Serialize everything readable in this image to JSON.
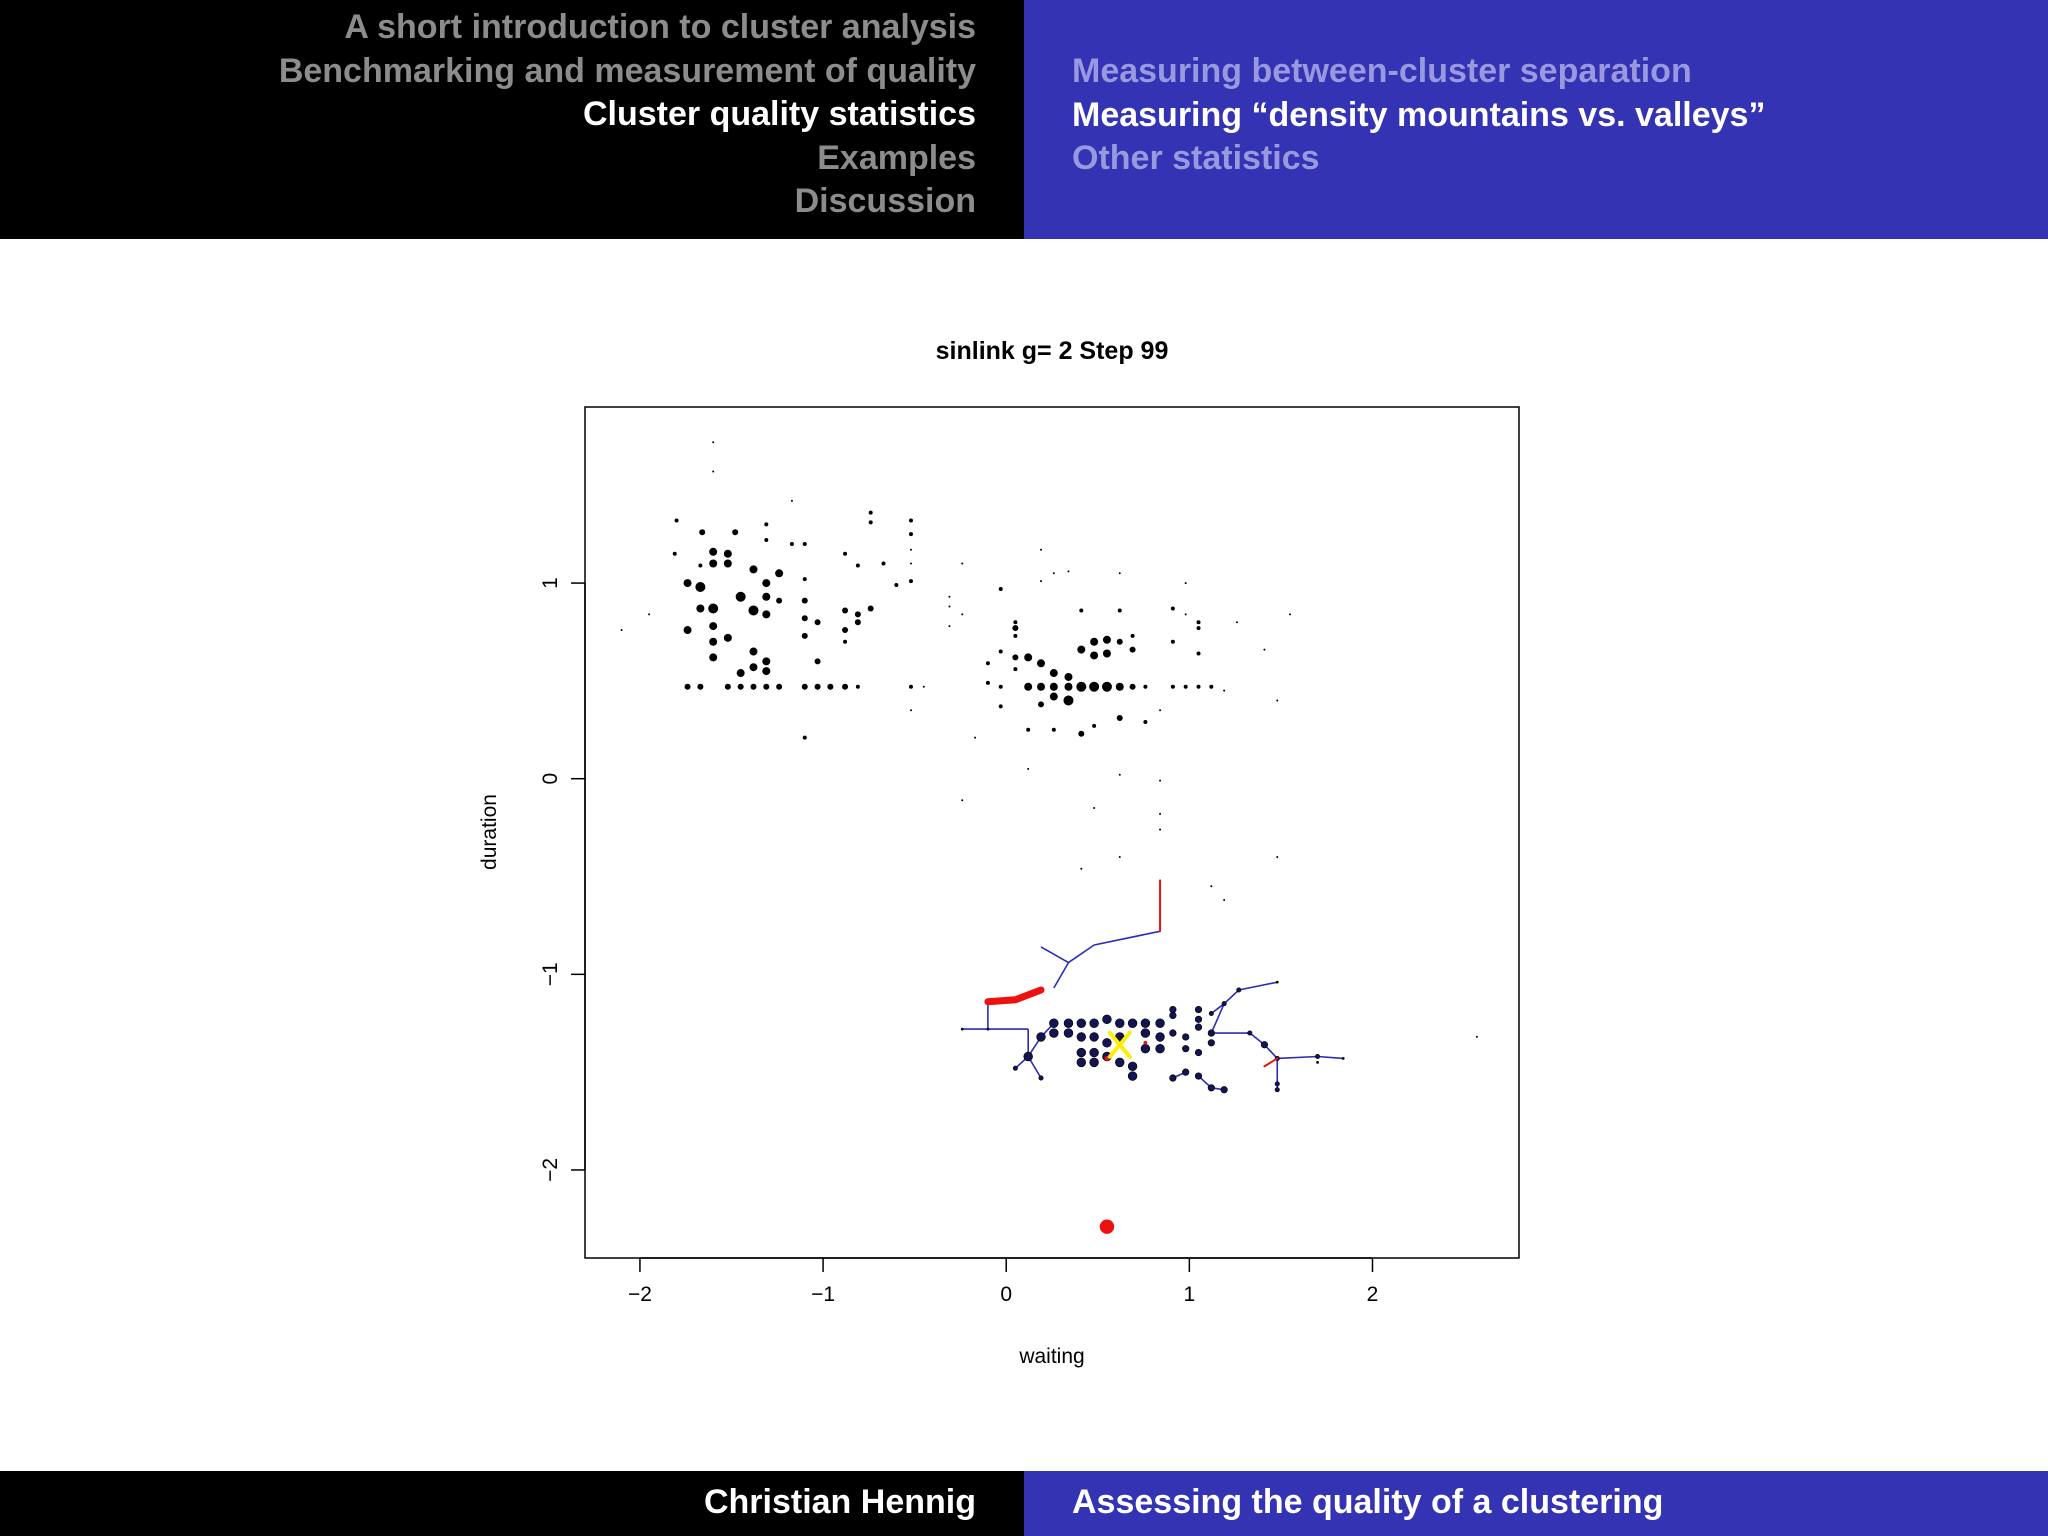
{
  "header": {
    "sections": [
      {
        "label": "A short introduction to cluster analysis",
        "active": false
      },
      {
        "label": "Benchmarking and measurement of quality",
        "active": false
      },
      {
        "label": "Cluster quality statistics",
        "active": true
      },
      {
        "label": "Examples",
        "active": false
      },
      {
        "label": "Discussion",
        "active": false
      }
    ],
    "subsections": [
      {
        "label": "Measuring between-cluster separation",
        "active": false
      },
      {
        "label": "Measuring “density mountains vs. valleys”",
        "active": true
      },
      {
        "label": "Other statistics",
        "active": false
      }
    ]
  },
  "footer": {
    "author": "Christian Hennig",
    "talk_title": "Assessing the quality of a clustering"
  },
  "colors": {
    "header_dark": "#000000",
    "header_accent": "#3333b3",
    "inactive_section": "#8c8c8c",
    "inactive_subsection": "#9999e0",
    "path": "#2b2bb8",
    "highlight": "#ee1111",
    "current": "#ffee00"
  },
  "chart_data": {
    "type": "scatter",
    "title": "sinlink  g= 2  Step  99",
    "xlabel": "waiting",
    "ylabel": "duration",
    "xlim": [
      -2.3,
      2.8
    ],
    "ylim": [
      -2.45,
      1.9
    ],
    "xticks": [
      -2,
      -1,
      0,
      1,
      2
    ],
    "yticks": [
      -2,
      -1,
      0,
      1
    ],
    "xtick_labels": [
      "−2",
      "−1",
      "0",
      "1",
      "2"
    ],
    "ytick_labels": [
      "−2",
      "−1",
      "0",
      "1"
    ],
    "grid": false,
    "points": [
      [
        -1.6,
        1.72,
        0.5
      ],
      [
        -1.6,
        1.57,
        0.5
      ],
      [
        -1.8,
        1.32,
        1
      ],
      [
        -1.66,
        1.26,
        1.5
      ],
      [
        -1.48,
        1.26,
        1.5
      ],
      [
        -1.31,
        1.3,
        1
      ],
      [
        -1.31,
        1.22,
        1
      ],
      [
        -1.17,
        1.42,
        0.5
      ],
      [
        -1.17,
        1.2,
        1
      ],
      [
        -1.1,
        1.2,
        1
      ],
      [
        -0.74,
        1.36,
        1
      ],
      [
        -0.74,
        1.31,
        1
      ],
      [
        -0.52,
        1.32,
        1
      ],
      [
        -0.52,
        1.25,
        1
      ],
      [
        -0.52,
        1.17,
        0.5
      ],
      [
        -0.88,
        1.15,
        1
      ],
      [
        -0.81,
        1.09,
        1
      ],
      [
        -0.67,
        1.1,
        1
      ],
      [
        -0.6,
        0.99,
        1
      ],
      [
        -0.52,
        1.01,
        1
      ],
      [
        -0.52,
        1.1,
        0.5
      ],
      [
        -1.81,
        1.15,
        1
      ],
      [
        -1.6,
        1.16,
        2
      ],
      [
        -1.52,
        1.15,
        2
      ],
      [
        -1.6,
        1.1,
        2
      ],
      [
        -1.52,
        1.1,
        2
      ],
      [
        -1.67,
        1.09,
        1
      ],
      [
        -1.38,
        1.07,
        2
      ],
      [
        -1.24,
        1.05,
        2
      ],
      [
        -1.31,
        1.0,
        2
      ],
      [
        -1.1,
        1.02,
        1
      ],
      [
        -1.74,
        1.0,
        2
      ],
      [
        -1.67,
        0.98,
        2.5
      ],
      [
        -1.45,
        0.93,
        2.5
      ],
      [
        -1.38,
        0.86,
        2.5
      ],
      [
        -1.31,
        0.93,
        2
      ],
      [
        -1.24,
        0.91,
        1.5
      ],
      [
        -1.1,
        0.91,
        1.5
      ],
      [
        -1.67,
        0.87,
        2
      ],
      [
        -1.6,
        0.87,
        2.5
      ],
      [
        -1.31,
        0.84,
        2
      ],
      [
        -1.1,
        0.82,
        1.5
      ],
      [
        -1.03,
        0.8,
        1.5
      ],
      [
        -0.88,
        0.86,
        1.5
      ],
      [
        -0.81,
        0.84,
        1.5
      ],
      [
        -0.74,
        0.87,
        1.5
      ],
      [
        -0.81,
        0.8,
        1.5
      ],
      [
        -0.88,
        0.76,
        1.5
      ],
      [
        -1.1,
        0.73,
        1.5
      ],
      [
        -0.88,
        0.7,
        1
      ],
      [
        -1.74,
        0.76,
        2
      ],
      [
        -1.6,
        0.78,
        2
      ],
      [
        -1.52,
        0.72,
        2
      ],
      [
        -1.6,
        0.7,
        2
      ],
      [
        -1.6,
        0.62,
        2
      ],
      [
        -1.38,
        0.65,
        2
      ],
      [
        -1.31,
        0.6,
        2
      ],
      [
        -1.38,
        0.57,
        2
      ],
      [
        -1.45,
        0.54,
        2
      ],
      [
        -1.31,
        0.55,
        2
      ],
      [
        -1.03,
        0.6,
        1.5
      ],
      [
        -1.74,
        0.47,
        1.5
      ],
      [
        -1.67,
        0.47,
        1.5
      ],
      [
        -1.52,
        0.47,
        1.5
      ],
      [
        -1.45,
        0.47,
        1.5
      ],
      [
        -1.38,
        0.47,
        1.5
      ],
      [
        -1.31,
        0.47,
        1.5
      ],
      [
        -1.24,
        0.47,
        1.5
      ],
      [
        -1.1,
        0.47,
        1.5
      ],
      [
        -1.03,
        0.47,
        1.5
      ],
      [
        -0.96,
        0.47,
        1.5
      ],
      [
        -0.88,
        0.47,
        1.5
      ],
      [
        -0.81,
        0.47,
        1
      ],
      [
        -0.52,
        0.47,
        1
      ],
      [
        -0.45,
        0.47,
        0.5
      ],
      [
        -0.52,
        0.35,
        0.5
      ],
      [
        -1.1,
        0.21,
        1
      ],
      [
        -1.95,
        0.84,
        0.5
      ],
      [
        -2.1,
        0.76,
        0.5
      ],
      [
        -0.31,
        0.93,
        0.5
      ],
      [
        -0.31,
        0.88,
        0.5
      ],
      [
        -0.24,
        0.84,
        0.5
      ],
      [
        -0.24,
        1.1,
        0.5
      ],
      [
        -0.31,
        0.78,
        0.5
      ],
      [
        -0.03,
        0.97,
        1
      ],
      [
        0.19,
        1.17,
        0.5
      ],
      [
        0.26,
        1.05,
        0.5
      ],
      [
        0.34,
        1.06,
        0.5
      ],
      [
        0.19,
        1.01,
        0.5
      ],
      [
        0.41,
        0.86,
        1
      ],
      [
        0.62,
        1.05,
        0.5
      ],
      [
        0.62,
        0.86,
        1
      ],
      [
        0.05,
        0.8,
        1
      ],
      [
        0.05,
        0.77,
        1.5
      ],
      [
        0.05,
        0.73,
        1
      ],
      [
        0.98,
        1.0,
        0.5
      ],
      [
        0.91,
        0.87,
        1
      ],
      [
        0.98,
        0.84,
        0.5
      ],
      [
        1.05,
        0.8,
        1
      ],
      [
        1.05,
        0.77,
        1
      ],
      [
        1.05,
        0.64,
        1
      ],
      [
        0.91,
        0.7,
        1
      ],
      [
        0.69,
        0.73,
        1
      ],
      [
        1.26,
        0.8,
        0.5
      ],
      [
        1.55,
        0.84,
        0.5
      ],
      [
        1.41,
        0.66,
        0.5
      ],
      [
        -0.1,
        0.59,
        1
      ],
      [
        0.05,
        0.62,
        1.5
      ],
      [
        -0.03,
        0.65,
        1
      ],
      [
        0.12,
        0.62,
        2
      ],
      [
        0.19,
        0.59,
        2
      ],
      [
        0.41,
        0.66,
        2
      ],
      [
        0.48,
        0.7,
        2
      ],
      [
        0.55,
        0.71,
        2
      ],
      [
        0.62,
        0.7,
        1.5
      ],
      [
        0.69,
        0.66,
        1.5
      ],
      [
        0.48,
        0.63,
        2
      ],
      [
        0.55,
        0.64,
        2
      ],
      [
        0.05,
        0.56,
        1
      ],
      [
        0.26,
        0.54,
        2
      ],
      [
        0.34,
        0.52,
        2
      ],
      [
        -0.1,
        0.49,
        1
      ],
      [
        -0.03,
        0.47,
        1
      ],
      [
        0.12,
        0.47,
        2
      ],
      [
        0.19,
        0.47,
        2
      ],
      [
        0.26,
        0.47,
        2
      ],
      [
        0.34,
        0.47,
        2
      ],
      [
        0.41,
        0.47,
        2.5
      ],
      [
        0.48,
        0.47,
        2.5
      ],
      [
        0.55,
        0.47,
        2.5
      ],
      [
        0.62,
        0.47,
        2
      ],
      [
        0.69,
        0.47,
        1.5
      ],
      [
        0.76,
        0.47,
        1
      ],
      [
        0.91,
        0.47,
        1
      ],
      [
        0.98,
        0.47,
        1
      ],
      [
        1.05,
        0.47,
        1
      ],
      [
        1.12,
        0.47,
        1
      ],
      [
        1.19,
        0.45,
        0.5
      ],
      [
        0.26,
        0.42,
        2
      ],
      [
        0.34,
        0.4,
        2.5
      ],
      [
        0.19,
        0.38,
        1.5
      ],
      [
        -0.03,
        0.37,
        1
      ],
      [
        0.62,
        0.31,
        1.5
      ],
      [
        0.76,
        0.29,
        1
      ],
      [
        0.84,
        0.35,
        0.5
      ],
      [
        0.12,
        0.25,
        1
      ],
      [
        0.26,
        0.25,
        1
      ],
      [
        0.41,
        0.23,
        1.5
      ],
      [
        0.48,
        0.27,
        1
      ],
      [
        -0.17,
        0.21,
        0.5
      ],
      [
        1.48,
        0.4,
        0.5
      ],
      [
        0.12,
        0.05,
        0.5
      ],
      [
        0.62,
        0.02,
        0.5
      ],
      [
        0.84,
        -0.01,
        0.5
      ],
      [
        -0.24,
        -0.11,
        0.5
      ],
      [
        0.48,
        -0.15,
        0.5
      ],
      [
        0.84,
        -0.18,
        0.5
      ],
      [
        0.41,
        -0.46,
        0.5
      ],
      [
        0.62,
        -0.4,
        0.5
      ],
      [
        0.84,
        -0.26,
        0.5
      ],
      [
        1.12,
        -0.55,
        0.5
      ],
      [
        1.19,
        -0.62,
        0.5
      ],
      [
        1.48,
        -0.4,
        0.5
      ],
      [
        2.57,
        -1.32,
        0.5
      ]
    ],
    "cluster_points": [
      [
        0.26,
        -1.25,
        2
      ],
      [
        0.34,
        -1.25,
        2
      ],
      [
        0.41,
        -1.25,
        2
      ],
      [
        0.48,
        -1.25,
        2
      ],
      [
        0.55,
        -1.23,
        2
      ],
      [
        0.62,
        -1.25,
        2
      ],
      [
        0.69,
        -1.25,
        2
      ],
      [
        0.76,
        -1.25,
        2
      ],
      [
        0.84,
        -1.25,
        2
      ],
      [
        0.91,
        -1.21,
        1.5
      ],
      [
        0.91,
        -1.18,
        1.5
      ],
      [
        1.05,
        -1.18,
        1.5
      ],
      [
        1.05,
        -1.23,
        1.5
      ],
      [
        1.05,
        -1.27,
        1.5
      ],
      [
        1.12,
        -1.3,
        1.5
      ],
      [
        0.26,
        -1.3,
        2
      ],
      [
        0.34,
        -1.3,
        2
      ],
      [
        0.19,
        -1.32,
        2
      ],
      [
        0.41,
        -1.32,
        2
      ],
      [
        0.48,
        -1.32,
        2
      ],
      [
        0.55,
        -1.35,
        2
      ],
      [
        0.62,
        -1.32,
        2
      ],
      [
        0.76,
        -1.3,
        2
      ],
      [
        0.84,
        -1.32,
        2
      ],
      [
        0.91,
        -1.3,
        1.5
      ],
      [
        0.98,
        -1.32,
        1.5
      ],
      [
        1.12,
        -1.35,
        1.5
      ],
      [
        0.41,
        -1.4,
        2
      ],
      [
        0.48,
        -1.4,
        2
      ],
      [
        0.55,
        -1.42,
        2
      ],
      [
        0.62,
        -1.45,
        2
      ],
      [
        0.69,
        -1.47,
        2
      ],
      [
        0.76,
        -1.38,
        2
      ],
      [
        0.84,
        -1.38,
        2
      ],
      [
        0.98,
        -1.38,
        1.5
      ],
      [
        1.05,
        -1.4,
        1.5
      ],
      [
        0.41,
        -1.45,
        2
      ],
      [
        0.48,
        -1.45,
        2
      ],
      [
        0.69,
        -1.52,
        2
      ],
      [
        0.91,
        -1.53,
        1.5
      ],
      [
        0.98,
        -1.5,
        1.5
      ],
      [
        1.05,
        -1.52,
        1.5
      ],
      [
        1.12,
        -1.58,
        1.5
      ],
      [
        1.19,
        -1.59,
        1.5
      ],
      [
        1.48,
        -1.59,
        1
      ],
      [
        1.48,
        -1.56,
        1
      ],
      [
        1.41,
        -1.36,
        1.5
      ],
      [
        1.33,
        -1.3,
        1
      ],
      [
        1.19,
        -1.15,
        1
      ],
      [
        1.12,
        -1.2,
        1
      ],
      [
        1.27,
        -1.08,
        1
      ],
      [
        1.48,
        -1.04,
        0.5
      ],
      [
        1.48,
        -1.43,
        1
      ],
      [
        1.7,
        -1.42,
        1
      ],
      [
        1.7,
        -1.45,
        0.5
      ],
      [
        1.84,
        -1.43,
        0.5
      ],
      [
        0.12,
        -1.42,
        2
      ],
      [
        0.05,
        -1.48,
        1
      ],
      [
        0.19,
        -1.53,
        1
      ],
      [
        -0.24,
        -1.28,
        0.5
      ],
      [
        -0.1,
        -1.28,
        0.5
      ]
    ],
    "path_edges": [
      [
        [
          -0.1,
          -1.28
        ],
        [
          -0.24,
          -1.28
        ]
      ],
      [
        [
          -0.1,
          -1.28
        ],
        [
          -0.1,
          -1.15
        ]
      ],
      [
        [
          -0.1,
          -1.28
        ],
        [
          0.12,
          -1.28
        ]
      ],
      [
        [
          0.12,
          -1.28
        ],
        [
          0.12,
          -1.42
        ]
      ],
      [
        [
          0.12,
          -1.42
        ],
        [
          0.05,
          -1.48
        ]
      ],
      [
        [
          0.12,
          -1.42
        ],
        [
          0.19,
          -1.53
        ]
      ],
      [
        [
          0.12,
          -1.42
        ],
        [
          0.19,
          -1.32
        ]
      ],
      [
        [
          0.19,
          -1.32
        ],
        [
          0.26,
          -1.25
        ]
      ],
      [
        [
          0.34,
          -0.94
        ],
        [
          0.19,
          -0.86
        ]
      ],
      [
        [
          0.34,
          -0.94
        ],
        [
          0.48,
          -0.85
        ]
      ],
      [
        [
          0.48,
          -0.85
        ],
        [
          0.84,
          -0.78
        ]
      ],
      [
        [
          0.34,
          -0.94
        ],
        [
          0.26,
          -1.07
        ]
      ],
      [
        [
          1.12,
          -1.3
        ],
        [
          1.19,
          -1.15
        ]
      ],
      [
        [
          1.19,
          -1.15
        ],
        [
          1.12,
          -1.2
        ]
      ],
      [
        [
          1.19,
          -1.15
        ],
        [
          1.27,
          -1.08
        ]
      ],
      [
        [
          1.27,
          -1.08
        ],
        [
          1.48,
          -1.04
        ]
      ],
      [
        [
          1.12,
          -1.3
        ],
        [
          1.33,
          -1.3
        ]
      ],
      [
        [
          1.33,
          -1.3
        ],
        [
          1.41,
          -1.36
        ]
      ],
      [
        [
          1.41,
          -1.36
        ],
        [
          1.48,
          -1.43
        ]
      ],
      [
        [
          1.48,
          -1.43
        ],
        [
          1.7,
          -1.42
        ]
      ],
      [
        [
          1.7,
          -1.42
        ],
        [
          1.84,
          -1.43
        ]
      ],
      [
        [
          1.48,
          -1.43
        ],
        [
          1.48,
          -1.56
        ]
      ],
      [
        [
          1.48,
          -1.56
        ],
        [
          1.48,
          -1.59
        ]
      ],
      [
        [
          1.19,
          -1.59
        ],
        [
          1.12,
          -1.58
        ]
      ],
      [
        [
          1.12,
          -1.58
        ],
        [
          1.05,
          -1.52
        ]
      ],
      [
        [
          0.98,
          -1.5
        ],
        [
          0.91,
          -1.53
        ]
      ]
    ],
    "highlight_edges": [
      [
        [
          -0.1,
          -1.14
        ],
        [
          0.05,
          -1.13
        ],
        [
          0.19,
          -1.08
        ]
      ],
      [
        [
          0.84,
          -0.78
        ],
        [
          0.84,
          -0.52
        ]
      ],
      [
        [
          1.48,
          -1.43
        ],
        [
          1.41,
          -1.47
        ]
      ]
    ],
    "red_dots": [
      [
        0.55,
        -2.29,
        4.5
      ],
      [
        0.55,
        -1.43,
        1.5
      ],
      [
        0.76,
        -1.35,
        1.2
      ]
    ],
    "current_point": [
      0.62,
      -1.36
    ]
  }
}
